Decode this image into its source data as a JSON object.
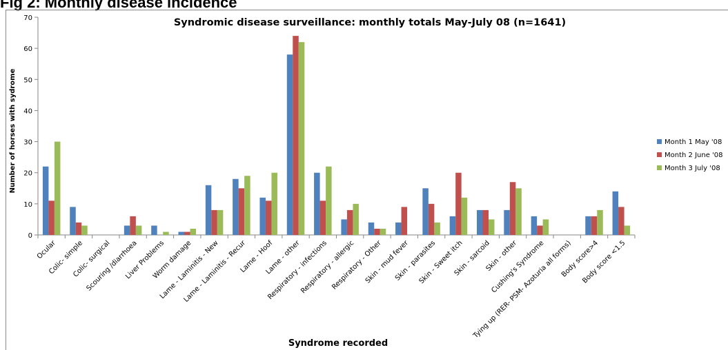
{
  "figure": {
    "heading": "Fig 2: Monthly disease incidence"
  },
  "chart_data": {
    "type": "bar",
    "title": "Syndromic disease surveillance: monthly totals May-July 08 (n=1641)",
    "xlabel": "Syndrome recorded",
    "ylabel": "Number of horses with sydrome",
    "ylim": [
      0,
      70
    ],
    "yticks": [
      0,
      10,
      20,
      30,
      40,
      50,
      60,
      70
    ],
    "grid": false,
    "legend_position": "right",
    "categories": [
      "Ocular",
      "Colic- simple",
      "Colic- surgical",
      "Scouring /diarrhoea",
      "Liver Problems",
      "Worm damage",
      "Lame - Laminitis - New",
      "Lame - Laminitis - Recur",
      "Lame - Hoof",
      "Lame - other",
      "Respiratory - infections",
      "Respiratory - allergic",
      "Respiratory - Other",
      "Skin - mud fever",
      "Skin - parasites",
      "Skin - Sweet itch",
      "Skin - sarcoid",
      "Skin - other",
      "Cushing's Syndrome",
      "Tying up (RER- PSM- Azoturia all forms)",
      "Body score>4",
      "Body score <1.5"
    ],
    "series": [
      {
        "name": "Month 1 May '08",
        "color": "#4f81bd",
        "values": [
          22,
          9,
          0,
          3,
          3,
          1,
          16,
          18,
          12,
          58,
          20,
          5,
          4,
          4,
          15,
          6,
          8,
          8,
          6,
          0,
          6,
          14
        ]
      },
      {
        "name": "Month 2 June '08",
        "color": "#c0504d",
        "values": [
          11,
          4,
          0,
          6,
          0,
          1,
          8,
          15,
          11,
          64,
          11,
          8,
          2,
          9,
          10,
          20,
          8,
          17,
          3,
          0,
          6,
          9
        ]
      },
      {
        "name": "Month 3 July '08",
        "color": "#9bbb59",
        "values": [
          30,
          3,
          0,
          3,
          1,
          2,
          8,
          19,
          20,
          62,
          22,
          10,
          2,
          0,
          4,
          12,
          5,
          15,
          5,
          0,
          8,
          3
        ]
      }
    ]
  }
}
